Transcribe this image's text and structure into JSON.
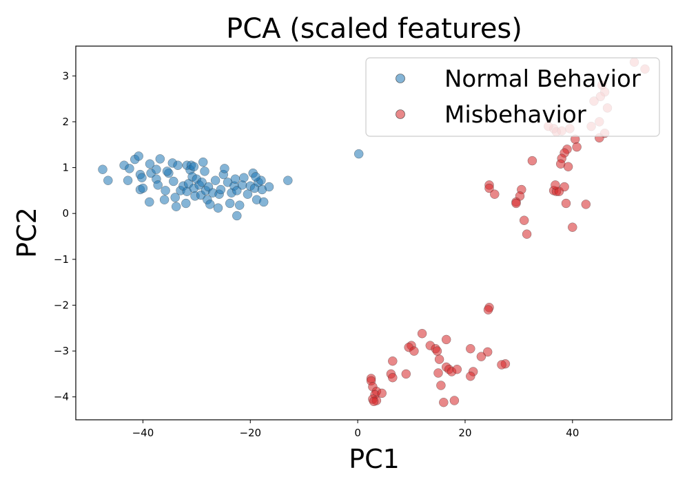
{
  "chart_data": {
    "type": "scatter",
    "title": "PCA (scaled features)",
    "xlabel": "PC1",
    "ylabel": "PC2",
    "xlim": [
      -52.5,
      58.5
    ],
    "ylim": [
      -4.5,
      3.65
    ],
    "xticks": [
      -40,
      -20,
      0,
      20,
      40
    ],
    "xtick_labels": [
      "−40",
      "−20",
      "0",
      "20",
      "40"
    ],
    "yticks": [
      -4,
      -3,
      -2,
      -1,
      0,
      1,
      2,
      3
    ],
    "ytick_labels": [
      "−4",
      "−3",
      "−2",
      "−1",
      "0",
      "1",
      "2",
      "3"
    ],
    "grid": false,
    "legend_position": "top-right",
    "series": [
      {
        "name": "Normal Behavior",
        "color": "#1f77b4",
        "points": [
          [
            -47.5,
            0.96
          ],
          [
            -46.5,
            0.72
          ],
          [
            -43.5,
            1.05
          ],
          [
            -42.5,
            0.98
          ],
          [
            -42.8,
            0.72
          ],
          [
            -41.5,
            1.18
          ],
          [
            -40.8,
            1.25
          ],
          [
            -40.5,
            0.85
          ],
          [
            -40.2,
            0.78
          ],
          [
            -40.5,
            0.52
          ],
          [
            -40.0,
            0.55
          ],
          [
            -38.7,
            1.08
          ],
          [
            -38.5,
            0.88
          ],
          [
            -37.5,
            0.96
          ],
          [
            -37.5,
            0.75
          ],
          [
            -37.2,
            0.62
          ],
          [
            -36.8,
            1.19
          ],
          [
            -36.0,
            0.3
          ],
          [
            -35.8,
            0.5
          ],
          [
            -35.2,
            0.88
          ],
          [
            -34.5,
            1.1
          ],
          [
            -34.3,
            0.7
          ],
          [
            -34.0,
            0.35
          ],
          [
            -33.8,
            0.15
          ],
          [
            -33.5,
            1.05
          ],
          [
            -33.0,
            0.5
          ],
          [
            -32.5,
            0.6
          ],
          [
            -32.0,
            0.22
          ],
          [
            -31.8,
            0.48
          ],
          [
            -31.5,
            0.65
          ],
          [
            -31.8,
            1.05
          ],
          [
            -31.2,
            0.95
          ],
          [
            -31.0,
            1.05
          ],
          [
            -30.8,
            0.8
          ],
          [
            -30.5,
            0.55
          ],
          [
            -30.3,
            0.38
          ],
          [
            -30.0,
            0.75
          ],
          [
            -29.5,
            0.62
          ],
          [
            -29.2,
            0.4
          ],
          [
            -29.0,
            0.68
          ],
          [
            -28.5,
            0.92
          ],
          [
            -28.3,
            0.5
          ],
          [
            -28.0,
            0.3
          ],
          [
            -27.8,
            0.58
          ],
          [
            -27.5,
            0.2
          ],
          [
            -27.0,
            0.45
          ],
          [
            -26.5,
            0.72
          ],
          [
            -26.0,
            0.12
          ],
          [
            -25.8,
            0.42
          ],
          [
            -25.5,
            0.52
          ],
          [
            -25.0,
            0.85
          ],
          [
            -24.8,
            0.98
          ],
          [
            -24.2,
            0.68
          ],
          [
            -23.8,
            0.22
          ],
          [
            -23.5,
            0.45
          ],
          [
            -23.0,
            0.6
          ],
          [
            -22.8,
            0.75
          ],
          [
            -22.5,
            0.5
          ],
          [
            -22.0,
            0.18
          ],
          [
            -21.5,
            0.62
          ],
          [
            -21.2,
            0.78
          ],
          [
            -20.5,
            0.42
          ],
          [
            -20.0,
            0.6
          ],
          [
            -19.5,
            0.88
          ],
          [
            -19.2,
            0.55
          ],
          [
            -18.8,
            0.3
          ],
          [
            -18.5,
            0.68
          ],
          [
            -18.0,
            0.72
          ],
          [
            -17.8,
            0.52
          ],
          [
            -17.5,
            0.25
          ],
          [
            -16.5,
            0.58
          ],
          [
            -22.5,
            -0.05
          ],
          [
            -19.0,
            0.8
          ],
          [
            -28.8,
            1.12
          ],
          [
            -30.5,
            1.02
          ],
          [
            -35.5,
            0.92
          ],
          [
            -38.8,
            0.25
          ],
          [
            -13.0,
            0.72
          ],
          [
            0.2,
            1.3
          ]
        ]
      },
      {
        "name": "Misbehavior",
        "color": "#d62728",
        "points": [
          [
            51.5,
            3.3
          ],
          [
            53.5,
            3.15
          ],
          [
            45.5,
            2.8
          ],
          [
            46.0,
            2.65
          ],
          [
            45.2,
            2.55
          ],
          [
            44.0,
            2.45
          ],
          [
            46.5,
            2.3
          ],
          [
            45.0,
            2.0
          ],
          [
            43.5,
            1.9
          ],
          [
            46.0,
            1.75
          ],
          [
            45.0,
            1.65
          ],
          [
            36.5,
            1.85
          ],
          [
            37.0,
            1.78
          ],
          [
            35.5,
            1.9
          ],
          [
            38.0,
            1.8
          ],
          [
            39.5,
            1.85
          ],
          [
            40.5,
            1.62
          ],
          [
            39.0,
            1.4
          ],
          [
            38.5,
            1.32
          ],
          [
            40.8,
            1.45
          ],
          [
            38.0,
            1.2
          ],
          [
            37.8,
            1.08
          ],
          [
            39.2,
            1.02
          ],
          [
            32.5,
            1.15
          ],
          [
            24.5,
            0.62
          ],
          [
            24.5,
            0.55
          ],
          [
            25.5,
            0.42
          ],
          [
            30.5,
            0.52
          ],
          [
            30.2,
            0.38
          ],
          [
            29.5,
            0.25
          ],
          [
            29.5,
            0.22
          ],
          [
            36.5,
            0.5
          ],
          [
            37.0,
            0.48
          ],
          [
            37.5,
            0.48
          ],
          [
            36.8,
            0.62
          ],
          [
            38.5,
            0.58
          ],
          [
            38.8,
            0.22
          ],
          [
            42.5,
            0.2
          ],
          [
            31.0,
            -0.15
          ],
          [
            31.5,
            -0.45
          ],
          [
            40.0,
            -0.3
          ],
          [
            24.5,
            -2.05
          ],
          [
            24.3,
            -2.1
          ],
          [
            12.0,
            -2.62
          ],
          [
            16.5,
            -2.75
          ],
          [
            13.5,
            -2.88
          ],
          [
            10.0,
            -2.88
          ],
          [
            9.5,
            -2.92
          ],
          [
            14.5,
            -2.95
          ],
          [
            14.8,
            -3.0
          ],
          [
            10.5,
            -3.0
          ],
          [
            21.0,
            -2.95
          ],
          [
            24.2,
            -3.02
          ],
          [
            23.0,
            -3.12
          ],
          [
            15.2,
            -3.18
          ],
          [
            27.5,
            -3.28
          ],
          [
            26.8,
            -3.3
          ],
          [
            6.5,
            -3.22
          ],
          [
            16.5,
            -3.35
          ],
          [
            17.0,
            -3.4
          ],
          [
            17.5,
            -3.45
          ],
          [
            18.5,
            -3.4
          ],
          [
            15.0,
            -3.48
          ],
          [
            21.5,
            -3.45
          ],
          [
            21.0,
            -3.55
          ],
          [
            6.2,
            -3.5
          ],
          [
            6.5,
            -3.58
          ],
          [
            9.0,
            -3.5
          ],
          [
            2.5,
            -3.6
          ],
          [
            2.5,
            -3.65
          ],
          [
            2.8,
            -3.78
          ],
          [
            3.5,
            -3.88
          ],
          [
            3.2,
            -3.95
          ],
          [
            4.5,
            -3.92
          ],
          [
            2.8,
            -4.05
          ],
          [
            3.5,
            -4.08
          ],
          [
            3.0,
            -4.1
          ],
          [
            15.5,
            -3.75
          ],
          [
            16.0,
            -4.12
          ],
          [
            18.0,
            -4.08
          ]
        ]
      }
    ]
  }
}
